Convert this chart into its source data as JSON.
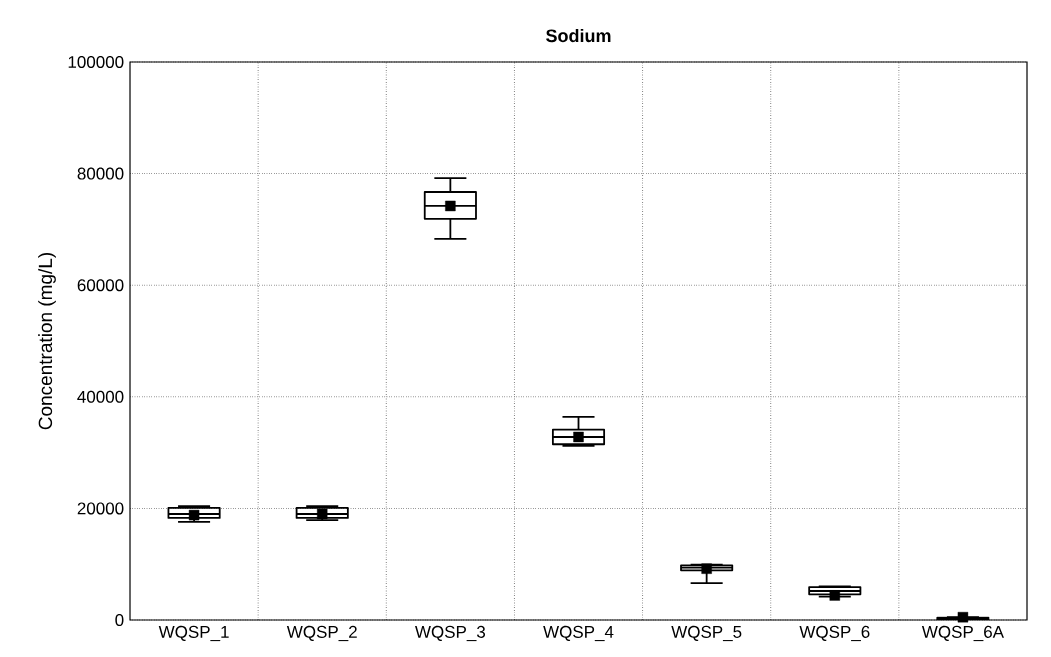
{
  "chart_data": {
    "type": "box",
    "title": "Sodium",
    "ylabel": "Concentration (mg/L)",
    "categories": [
      "WQSP_1",
      "WQSP_2",
      "WQSP_3",
      "WQSP_4",
      "WQSP_5",
      "WQSP_6",
      "WQSP_6A"
    ],
    "boxes": [
      {
        "low": 17600,
        "q1": 18300,
        "median": 19000,
        "q3": 20100,
        "high": 20400,
        "mean": 18800
      },
      {
        "low": 17900,
        "q1": 18300,
        "median": 19000,
        "q3": 20100,
        "high": 20400,
        "mean": 19000
      },
      {
        "low": 68300,
        "q1": 71900,
        "median": 74200,
        "q3": 76700,
        "high": 79200,
        "mean": 74200
      },
      {
        "low": 31200,
        "q1": 31500,
        "median": 32800,
        "q3": 34100,
        "high": 36400,
        "mean": 32800
      },
      {
        "low": 6600,
        "q1": 8900,
        "median": 9400,
        "q3": 9800,
        "high": 9900,
        "mean": 9200
      },
      {
        "low": 4200,
        "q1": 4600,
        "median": 5200,
        "q3": 5900,
        "high": 6000,
        "mean": 4400
      },
      {
        "low": 0,
        "q1": 100,
        "median": 200,
        "q3": 400,
        "high": 500,
        "mean": 500
      }
    ],
    "color": "#000000",
    "ylim": [
      0,
      100000
    ],
    "yticks": [
      0,
      20000,
      40000,
      60000,
      80000,
      100000
    ],
    "grid": true,
    "marker": "square"
  }
}
